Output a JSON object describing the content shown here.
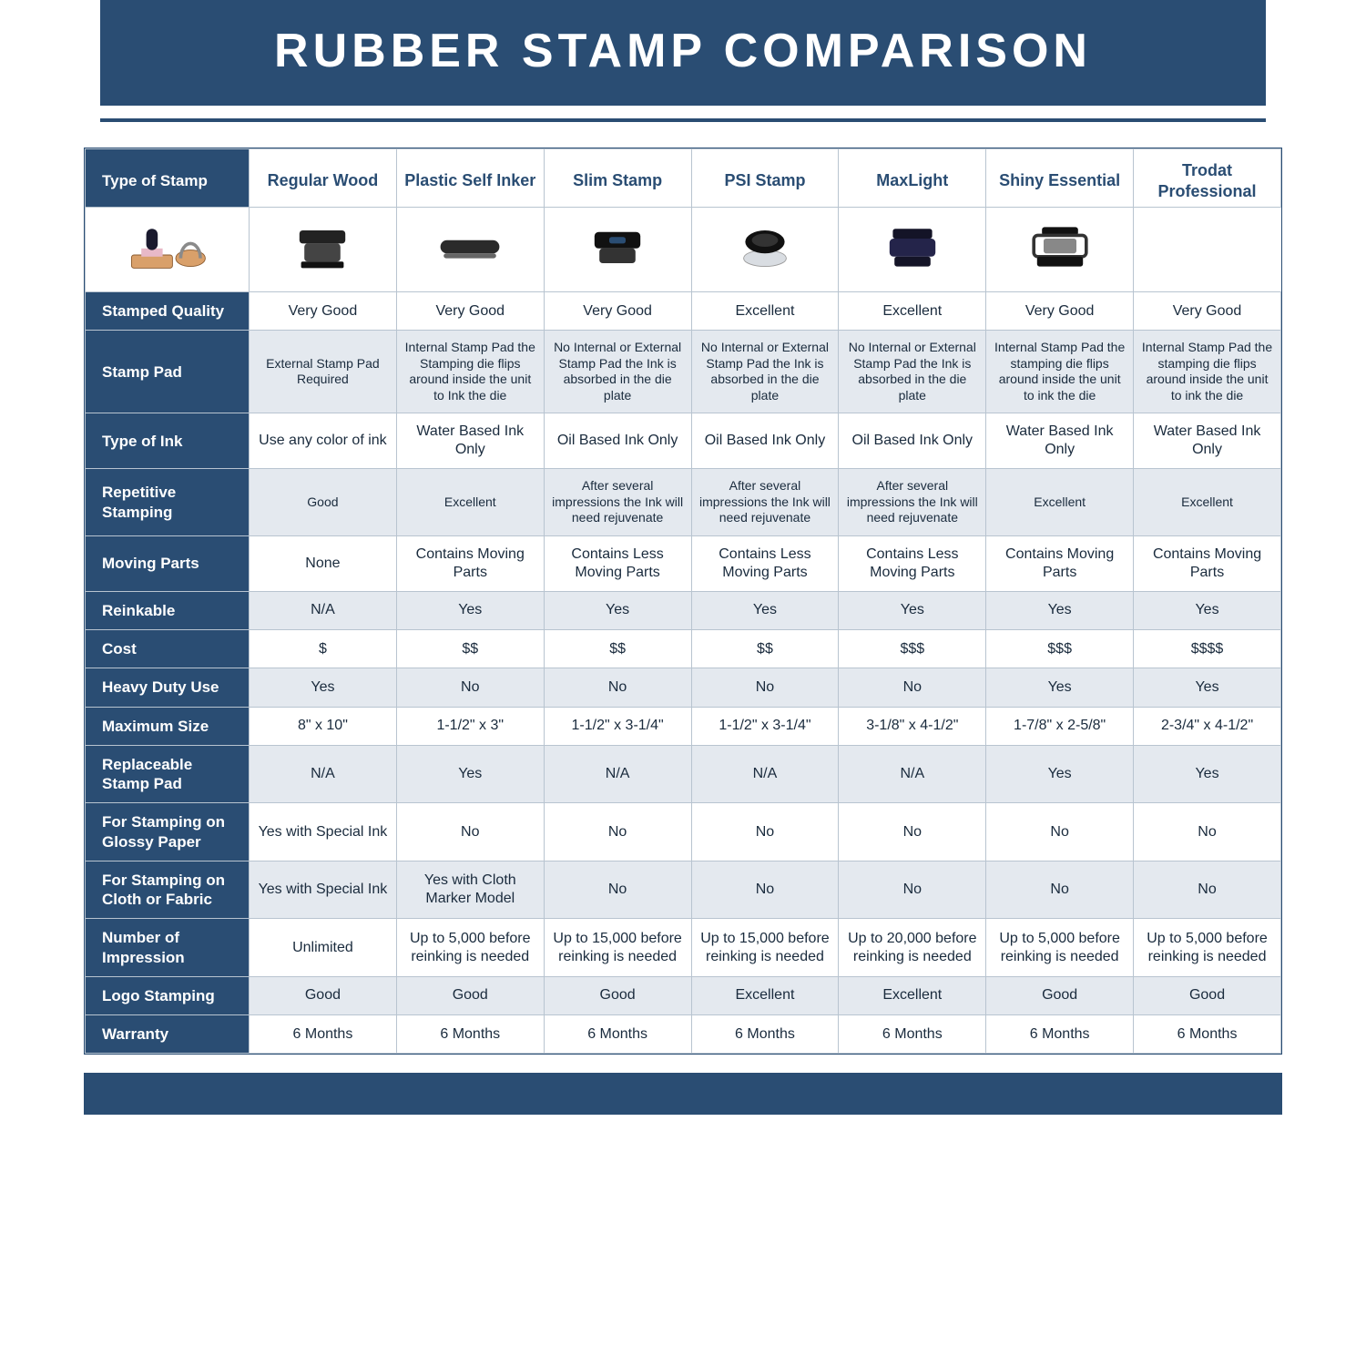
{
  "title": "RUBBER STAMP COMPARISON",
  "colors": {
    "navy": "#2a4d73",
    "navy_dark": "#1f3a5a",
    "border_grey": "#b8c4d0",
    "zebra": "#e4e9ef",
    "white": "#ffffff",
    "text_dark": "#1a2b3d"
  },
  "columns": [
    "Regular Wood",
    "Plastic Self Inker",
    "Slim Stamp",
    "PSI Stamp",
    "MaxLight",
    "Shiny Essential",
    "Trodat Professional"
  ],
  "icons": [
    "wood-stamp-icon",
    "self-inker-icon",
    "slim-stamp-icon",
    "psi-stamp-icon",
    "maxlight-icon",
    "shiny-essential-icon",
    "trodat-pro-icon"
  ],
  "type_of_stamp_label": "Type of Stamp",
  "rows": [
    {
      "label": "Stamped Quality",
      "zebra": false,
      "cells": [
        "Very Good",
        "Very Good",
        "Very Good",
        "Excellent",
        "Excellent",
        "Very Good",
        "Very Good"
      ]
    },
    {
      "label": "Stamp Pad",
      "zebra": true,
      "small": true,
      "cells": [
        "External Stamp Pad Required",
        "Internal Stamp Pad the Stamping die flips around inside the unit to Ink the die",
        "No Internal or External Stamp Pad the Ink is absorbed in the die plate",
        "No Internal or External Stamp Pad the Ink is absorbed in the die plate",
        "No Internal or External Stamp Pad the Ink is absorbed in the die plate",
        "Internal Stamp Pad the stamping die flips around inside the unit to ink the die",
        "Internal Stamp Pad the stamping die flips around inside the unit to ink the die"
      ]
    },
    {
      "label": "Type of Ink",
      "zebra": false,
      "cells": [
        "Use any color of ink",
        "Water Based Ink Only",
        "Oil Based Ink Only",
        "Oil Based Ink Only",
        "Oil Based Ink Only",
        "Water Based Ink Only",
        "Water Based Ink Only"
      ]
    },
    {
      "label": "Repetitive Stamping",
      "zebra": true,
      "small": true,
      "cells": [
        "Good",
        "Excellent",
        "After several impressions the Ink will need rejuvenate",
        "After several impressions the Ink will need rejuvenate",
        "After several impressions the Ink will need rejuvenate",
        "Excellent",
        "Excellent"
      ]
    },
    {
      "label": "Moving Parts",
      "zebra": false,
      "cells": [
        "None",
        "Contains Moving Parts",
        "Contains Less Moving Parts",
        "Contains Less Moving Parts",
        "Contains Less Moving Parts",
        "Contains Moving Parts",
        "Contains Moving Parts"
      ]
    },
    {
      "label": "Reinkable",
      "zebra": true,
      "cells": [
        "N/A",
        "Yes",
        "Yes",
        "Yes",
        "Yes",
        "Yes",
        "Yes"
      ]
    },
    {
      "label": "Cost",
      "zebra": false,
      "cells": [
        "$",
        "$$",
        "$$",
        "$$",
        "$$$",
        "$$$",
        "$$$$"
      ]
    },
    {
      "label": "Heavy Duty Use",
      "zebra": true,
      "cells": [
        "Yes",
        "No",
        "No",
        "No",
        "No",
        "Yes",
        "Yes"
      ]
    },
    {
      "label": "Maximum Size",
      "zebra": false,
      "cells": [
        "8\" x 10\"",
        "1-1/2\" x 3\"",
        "1-1/2\" x 3-1/4\"",
        "1-1/2\" x 3-1/4\"",
        "3-1/8\" x 4-1/2\"",
        "1-7/8\" x 2-5/8\"",
        "2-3/4\" x 4-1/2\""
      ]
    },
    {
      "label": "Replaceable Stamp Pad",
      "zebra": true,
      "cells": [
        "N/A",
        "Yes",
        "N/A",
        "N/A",
        "N/A",
        "Yes",
        "Yes"
      ]
    },
    {
      "label": "For Stamping on Glossy Paper",
      "zebra": false,
      "cells": [
        "Yes with Special Ink",
        "No",
        "No",
        "No",
        "No",
        "No",
        "No"
      ]
    },
    {
      "label": "For Stamping on Cloth or Fabric",
      "zebra": true,
      "cells": [
        "Yes with Special Ink",
        "Yes with Cloth Marker Model",
        "No",
        "No",
        "No",
        "No",
        "No"
      ]
    },
    {
      "label": "Number of Impression",
      "zebra": false,
      "cells": [
        "Unlimited",
        "Up to 5,000 before reinking is needed",
        "Up to 15,000 before reinking is needed",
        "Up to 15,000 before reinking is needed",
        "Up to 20,000 before reinking is needed",
        "Up to 5,000 before reinking is needed",
        "Up to 5,000 before reinking is needed"
      ]
    },
    {
      "label": "Logo Stamping",
      "zebra": true,
      "cells": [
        "Good",
        "Good",
        "Good",
        "Excellent",
        "Excellent",
        "Good",
        "Good"
      ]
    },
    {
      "label": "Warranty",
      "zebra": false,
      "cells": [
        "6 Months",
        "6 Months",
        "6 Months",
        "6 Months",
        "6 Months",
        "6 Months",
        "6 Months"
      ]
    }
  ]
}
